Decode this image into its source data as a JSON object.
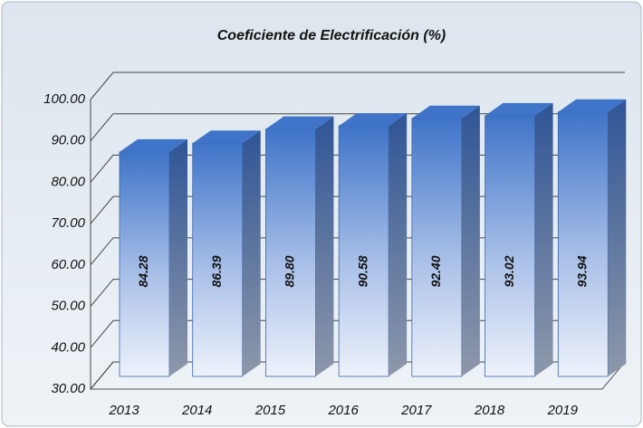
{
  "chart_data": {
    "type": "bar3d",
    "title": "Coeficiente de Electrificación (%)",
    "categories": [
      "2013",
      "2014",
      "2015",
      "2016",
      "2017",
      "2018",
      "2019"
    ],
    "values": [
      84.28,
      86.39,
      89.8,
      90.58,
      92.4,
      93.02,
      93.94
    ],
    "value_labels": [
      "84.28",
      "86.39",
      "89.80",
      "90.58",
      "92.40",
      "93.02",
      "93.94"
    ],
    "color": "#3f74c8",
    "ylim": [
      30,
      100
    ],
    "yticks": [
      {
        "value": 30,
        "label": "30.00"
      },
      {
        "value": 40,
        "label": "40.00"
      },
      {
        "value": 50,
        "label": "50.00"
      },
      {
        "value": 60,
        "label": "60.00"
      },
      {
        "value": 70,
        "label": "70.00"
      },
      {
        "value": 80,
        "label": "80.00"
      },
      {
        "value": 90,
        "label": "90.00"
      },
      {
        "value": 100,
        "label": "100.00"
      }
    ],
    "grid": true
  }
}
